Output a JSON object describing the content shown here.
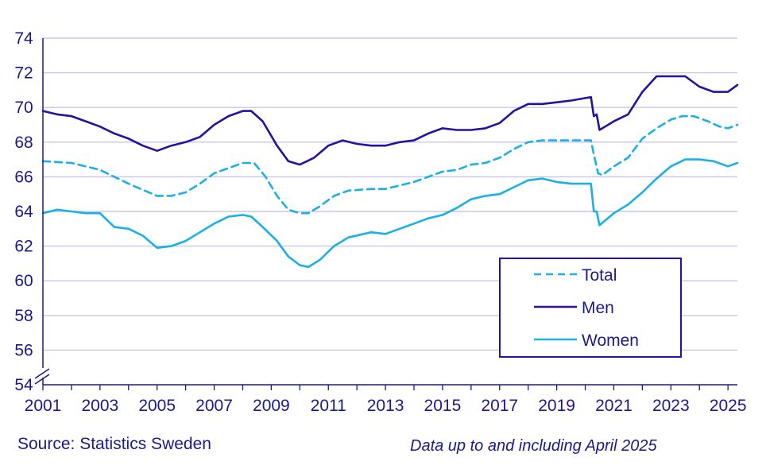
{
  "chart_data": {
    "type": "line",
    "title": "",
    "xlabel": "",
    "ylabel": "",
    "xlim": [
      2001,
      2025.33
    ],
    "ylim": [
      54,
      74
    ],
    "y_ticks": [
      74,
      72,
      70,
      68,
      66,
      64,
      62,
      60,
      58,
      56,
      54
    ],
    "x_ticks": [
      2001,
      2003,
      2005,
      2007,
      2009,
      2011,
      2013,
      2015,
      2017,
      2019,
      2021,
      2023,
      2025
    ],
    "axis_break": true,
    "grid": true,
    "legend_position": "bottom-right",
    "colors": {
      "total": "#1ab0e6",
      "men": "#2a0fa0",
      "women": "#1ab0e6",
      "axis": "#1a1a8c",
      "grid": "#c9c6ec"
    },
    "series": [
      {
        "name": "Total",
        "style": "dashed",
        "points": [
          [
            2001,
            66.9
          ],
          [
            2002,
            66.8
          ],
          [
            2003,
            66.4
          ],
          [
            2004,
            65.6
          ],
          [
            2005,
            64.9
          ],
          [
            2005.5,
            64.9
          ],
          [
            2006,
            65.1
          ],
          [
            2006.5,
            65.6
          ],
          [
            2007,
            66.2
          ],
          [
            2007.5,
            66.5
          ],
          [
            2008,
            66.8
          ],
          [
            2008.4,
            66.8
          ],
          [
            2008.8,
            66.0
          ],
          [
            2009.2,
            64.9
          ],
          [
            2009.6,
            64.1
          ],
          [
            2010,
            63.9
          ],
          [
            2010.3,
            63.9
          ],
          [
            2010.7,
            64.3
          ],
          [
            2011.2,
            64.9
          ],
          [
            2011.7,
            65.2
          ],
          [
            2012.5,
            65.3
          ],
          [
            2013,
            65.3
          ],
          [
            2013.5,
            65.5
          ],
          [
            2014,
            65.7
          ],
          [
            2014.5,
            66.0
          ],
          [
            2015,
            66.3
          ],
          [
            2015.5,
            66.4
          ],
          [
            2016,
            66.7
          ],
          [
            2016.5,
            66.8
          ],
          [
            2017,
            67.1
          ],
          [
            2017.5,
            67.6
          ],
          [
            2018,
            68.0
          ],
          [
            2018.5,
            68.1
          ],
          [
            2019,
            68.1
          ],
          [
            2019.5,
            68.1
          ],
          [
            2020.2,
            68.1
          ],
          [
            2020.3,
            67.3
          ],
          [
            2020.45,
            66.2
          ],
          [
            2020.6,
            66.1
          ],
          [
            2021,
            66.6
          ],
          [
            2021.5,
            67.1
          ],
          [
            2022,
            68.2
          ],
          [
            2022.5,
            68.8
          ],
          [
            2023,
            69.3
          ],
          [
            2023.4,
            69.5
          ],
          [
            2023.8,
            69.5
          ],
          [
            2024.3,
            69.2
          ],
          [
            2024.7,
            68.9
          ],
          [
            2025,
            68.8
          ],
          [
            2025.33,
            69.0
          ]
        ]
      },
      {
        "name": "Men",
        "style": "solid",
        "points": [
          [
            2001,
            69.8
          ],
          [
            2001.5,
            69.6
          ],
          [
            2002,
            69.5
          ],
          [
            2002.5,
            69.2
          ],
          [
            2003,
            68.9
          ],
          [
            2003.5,
            68.5
          ],
          [
            2004,
            68.2
          ],
          [
            2004.5,
            67.8
          ],
          [
            2005,
            67.5
          ],
          [
            2005.5,
            67.8
          ],
          [
            2006,
            68.0
          ],
          [
            2006.5,
            68.3
          ],
          [
            2007,
            69.0
          ],
          [
            2007.5,
            69.5
          ],
          [
            2008,
            69.8
          ],
          [
            2008.3,
            69.8
          ],
          [
            2008.7,
            69.2
          ],
          [
            2009.2,
            67.8
          ],
          [
            2009.6,
            66.9
          ],
          [
            2010,
            66.7
          ],
          [
            2010.5,
            67.1
          ],
          [
            2011,
            67.8
          ],
          [
            2011.5,
            68.1
          ],
          [
            2012,
            67.9
          ],
          [
            2012.5,
            67.8
          ],
          [
            2013,
            67.8
          ],
          [
            2013.5,
            68.0
          ],
          [
            2014,
            68.1
          ],
          [
            2014.5,
            68.5
          ],
          [
            2015,
            68.8
          ],
          [
            2015.5,
            68.7
          ],
          [
            2016,
            68.7
          ],
          [
            2016.5,
            68.8
          ],
          [
            2017,
            69.1
          ],
          [
            2017.5,
            69.8
          ],
          [
            2018,
            70.2
          ],
          [
            2018.5,
            70.2
          ],
          [
            2019,
            70.3
          ],
          [
            2019.5,
            70.4
          ],
          [
            2020.2,
            70.6
          ],
          [
            2020.3,
            69.5
          ],
          [
            2020.4,
            69.6
          ],
          [
            2020.5,
            68.7
          ],
          [
            2021,
            69.2
          ],
          [
            2021.5,
            69.6
          ],
          [
            2022,
            70.9
          ],
          [
            2022.5,
            71.8
          ],
          [
            2023,
            71.8
          ],
          [
            2023.5,
            71.8
          ],
          [
            2024,
            71.2
          ],
          [
            2024.5,
            70.9
          ],
          [
            2025,
            70.9
          ],
          [
            2025.33,
            71.3
          ]
        ]
      },
      {
        "name": "Women",
        "style": "solid",
        "points": [
          [
            2001,
            63.9
          ],
          [
            2001.5,
            64.1
          ],
          [
            2002,
            64.0
          ],
          [
            2002.5,
            63.9
          ],
          [
            2003,
            63.9
          ],
          [
            2003.5,
            63.1
          ],
          [
            2004,
            63.0
          ],
          [
            2004.5,
            62.6
          ],
          [
            2005,
            61.9
          ],
          [
            2005.5,
            62.0
          ],
          [
            2006,
            62.3
          ],
          [
            2006.5,
            62.8
          ],
          [
            2007,
            63.3
          ],
          [
            2007.5,
            63.7
          ],
          [
            2008,
            63.8
          ],
          [
            2008.3,
            63.7
          ],
          [
            2008.7,
            63.1
          ],
          [
            2009.2,
            62.3
          ],
          [
            2009.6,
            61.4
          ],
          [
            2010,
            60.9
          ],
          [
            2010.3,
            60.8
          ],
          [
            2010.7,
            61.2
          ],
          [
            2011.2,
            62.0
          ],
          [
            2011.7,
            62.5
          ],
          [
            2012.5,
            62.8
          ],
          [
            2013,
            62.7
          ],
          [
            2013.5,
            63.0
          ],
          [
            2014,
            63.3
          ],
          [
            2014.5,
            63.6
          ],
          [
            2015,
            63.8
          ],
          [
            2015.5,
            64.2
          ],
          [
            2016,
            64.7
          ],
          [
            2016.5,
            64.9
          ],
          [
            2017,
            65.0
          ],
          [
            2017.5,
            65.4
          ],
          [
            2018,
            65.8
          ],
          [
            2018.5,
            65.9
          ],
          [
            2019,
            65.7
          ],
          [
            2019.5,
            65.6
          ],
          [
            2020.2,
            65.6
          ],
          [
            2020.3,
            64.0
          ],
          [
            2020.4,
            64.0
          ],
          [
            2020.5,
            63.2
          ],
          [
            2021,
            63.9
          ],
          [
            2021.5,
            64.4
          ],
          [
            2022,
            65.1
          ],
          [
            2022.5,
            65.9
          ],
          [
            2023,
            66.6
          ],
          [
            2023.5,
            67.0
          ],
          [
            2024,
            67.0
          ],
          [
            2024.5,
            66.9
          ],
          [
            2025,
            66.6
          ],
          [
            2025.33,
            66.8
          ]
        ]
      }
    ]
  },
  "source_text": "Source: Statistics Sweden",
  "note_text": "Data up to and including April 2025"
}
